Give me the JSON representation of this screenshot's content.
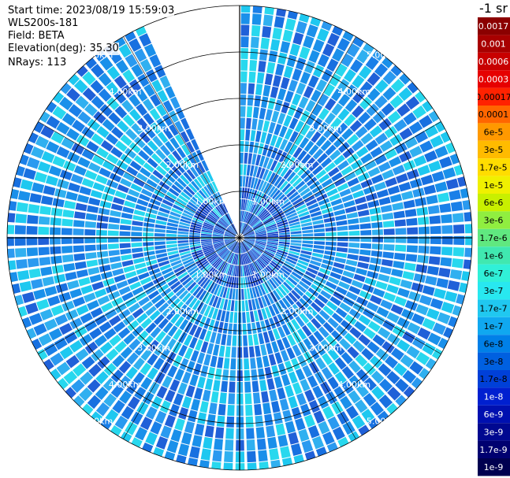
{
  "info": {
    "start_time": "Start time: 2023/08/19 15:59:03",
    "instrument": "WLS200s-181",
    "field": "Field: BETA",
    "elevation": "Elevation(deg): 35.30",
    "nrays": "NRays: 113"
  },
  "unit_label": "-1 sr",
  "chart_data": {
    "type": "heatmap",
    "projection": "polar (PPI scan)",
    "field": "BETA",
    "n_rays": 113,
    "range_rings_km": [
      1.0,
      2.0,
      3.0,
      4.0,
      5.0
    ],
    "range_ring_labels": [
      "1.00km",
      "2.00km",
      "3.00km",
      "4.00km",
      "5.00km"
    ],
    "max_range_km": 5.0,
    "missing_sector_deg": [
      -24,
      0
    ],
    "grid": true,
    "colorbar": {
      "labels": [
        "0.0017",
        "0.001",
        "0.0006",
        "0.0003",
        "0.00017",
        "0.0001",
        "6e-5",
        "3e-5",
        "1.7e-5",
        "1e-5",
        "6e-6",
        "3e-6",
        "1.7e-6",
        "1e-6",
        "6e-7",
        "3e-7",
        "1.7e-7",
        "1e-7",
        "6e-8",
        "3e-8",
        "1.7e-8",
        "1e-8",
        "6e-9",
        "3e-9",
        "1.7e-9",
        "1e-9"
      ],
      "colors": [
        "#8b0000",
        "#a80000",
        "#c80000",
        "#e60000",
        "#ff2200",
        "#ff6600",
        "#ff9900",
        "#ffbb00",
        "#ffdd00",
        "#f0f000",
        "#c8f000",
        "#90ee40",
        "#60e880",
        "#40e8b0",
        "#30f0d8",
        "#28e8f0",
        "#20c8f0",
        "#10a8f0",
        "#0080e8",
        "#0060e0",
        "#0040d8",
        "#0020d0",
        "#0010b0",
        "#000890",
        "#000070",
        "#000050"
      ],
      "label_colors": [
        "#ffffff",
        "#ffffff",
        "#ffffff",
        "#ffffff",
        "#000000",
        "#000000",
        "#000000",
        "#000000",
        "#000000",
        "#000000",
        "#000000",
        "#000000",
        "#000000",
        "#000000",
        "#000000",
        "#000000",
        "#000000",
        "#000000",
        "#000000",
        "#000000",
        "#000000",
        "#ffffff",
        "#ffffff",
        "#ffffff",
        "#ffffff",
        "#ffffff"
      ]
    }
  }
}
